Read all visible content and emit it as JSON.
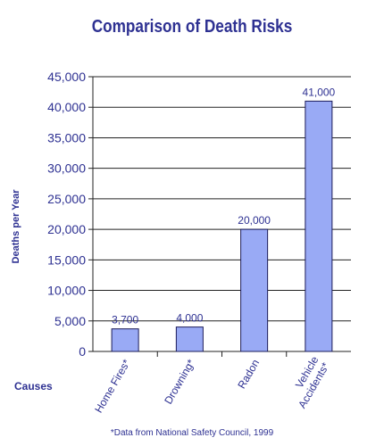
{
  "chart_data": {
    "type": "bar",
    "title": "Comparison of Death Risks",
    "ylabel": "Deaths per Year",
    "xlabel": "Causes",
    "categories": [
      [
        "Home Fires*"
      ],
      [
        "Drowning*"
      ],
      [
        "Radon"
      ],
      [
        "Vehicle",
        "Accidents*"
      ]
    ],
    "values": [
      3700,
      4000,
      20000,
      41000
    ],
    "value_labels": [
      "3,700",
      "4,000",
      "20,000",
      "41,000"
    ],
    "y_ticks": [
      "0",
      "5,000",
      "10,000",
      "15,000",
      "20,000",
      "25,000",
      "30,000",
      "35,000",
      "40,000",
      "45,000"
    ],
    "ylim": [
      0,
      45000
    ],
    "grid": true,
    "footnote": "*Data from National Safety Council, 1999"
  },
  "colors": {
    "bar": "#99aaf5",
    "bar_stroke": "#1c1c5a",
    "text": "#2e3192",
    "grid": "#222222"
  }
}
